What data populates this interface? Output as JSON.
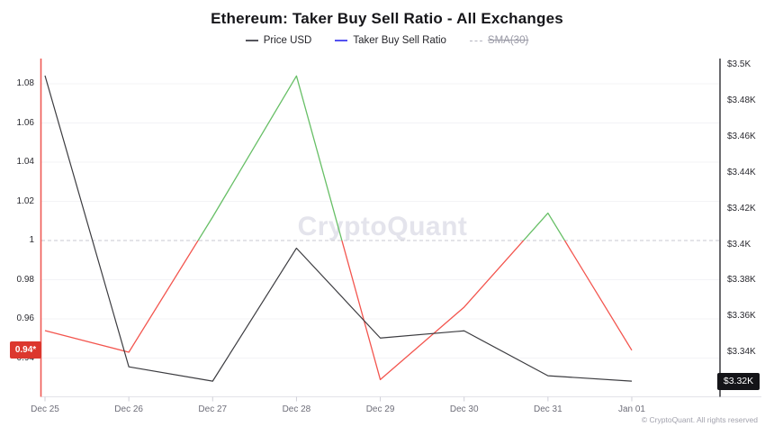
{
  "header": {
    "title": "Ethereum: Taker Buy Sell Ratio - All Exchanges"
  },
  "legend": {
    "items": [
      {
        "label": "Price USD",
        "color": "#55555c",
        "line_style": "solid",
        "disabled": false
      },
      {
        "label": "Taker Buy Sell Ratio",
        "color": "#5452f0",
        "line_style": "solid",
        "disabled": false
      },
      {
        "label": "SMA(30)",
        "color": "#b4b4bf",
        "line_style": "dashed",
        "disabled": true
      }
    ]
  },
  "watermark": "CryptoQuant",
  "footer": {
    "copyright": "© CryptoQuant. All rights reserved"
  },
  "chart_data": {
    "type": "line",
    "title": "Ethereum: Taker Buy Sell Ratio - All Exchanges",
    "categories": [
      "Dec 25",
      "Dec 26",
      "Dec 27",
      "Dec 28",
      "Dec 29",
      "Dec 30",
      "Dec 31",
      "Jan 01"
    ],
    "series": [
      {
        "name": "Taker Buy Sell Ratio",
        "yaxis": "left",
        "values": [
          0.954,
          0.943,
          1.012,
          1.084,
          0.929,
          0.966,
          1.014,
          0.944
        ],
        "threshold": 1,
        "color_above_threshold": "#67bf66",
        "color_below_threshold": "#f3554e"
      },
      {
        "name": "Price USD",
        "yaxis": "right",
        "unit": "$K",
        "values": [
          3.494,
          3.332,
          3.324,
          3.398,
          3.348,
          3.352,
          3.327,
          3.324
        ],
        "color": "#3c3c40"
      }
    ],
    "left_axis": {
      "ticks": [
        "1.08",
        "1.06",
        "1.04",
        "1.02",
        "1",
        "0.98",
        "0.96",
        "0.94"
      ],
      "axis_line_color": "#ef5a54",
      "last_value_badge": {
        "text": "0.94*",
        "color": "#dc372e"
      }
    },
    "right_axis": {
      "ticks": [
        "$3.5K",
        "$3.48K",
        "$3.46K",
        "$3.44K",
        "$3.42K",
        "$3.4K",
        "$3.38K",
        "$3.36K",
        "$3.34K"
      ],
      "axis_line_color": "#2c2c31",
      "last_value_badge": {
        "text": "$3.32K",
        "color": "#141418"
      }
    },
    "threshold_line": {
      "value": 1,
      "style": "dashed",
      "color": "#c8c8d1"
    },
    "grid": "horizontal",
    "legend_position": "top"
  }
}
